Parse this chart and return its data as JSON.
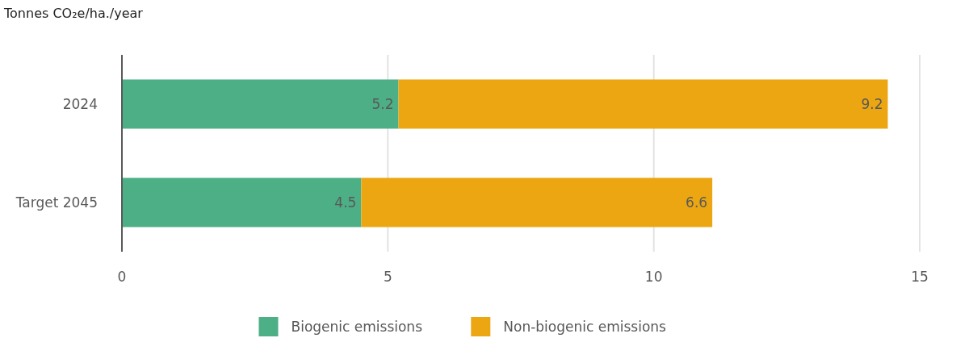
{
  "chart_data": {
    "type": "bar",
    "orientation": "horizontal",
    "stacked": true,
    "title": "Tonnes CO₂e/ha./year",
    "categories": [
      "2024",
      "Target 2045"
    ],
    "series": [
      {
        "name": "Biogenic emissions",
        "color": "#4caf85",
        "values": [
          5.2,
          4.5
        ]
      },
      {
        "name": "Non-biogenic emissions",
        "color": "#eca611",
        "values": [
          9.2,
          6.6
        ]
      }
    ],
    "xlim": [
      0,
      15
    ],
    "xticks": [
      0,
      5,
      10,
      15
    ],
    "grid": "x",
    "legend": "bottom",
    "data_labels": true
  }
}
